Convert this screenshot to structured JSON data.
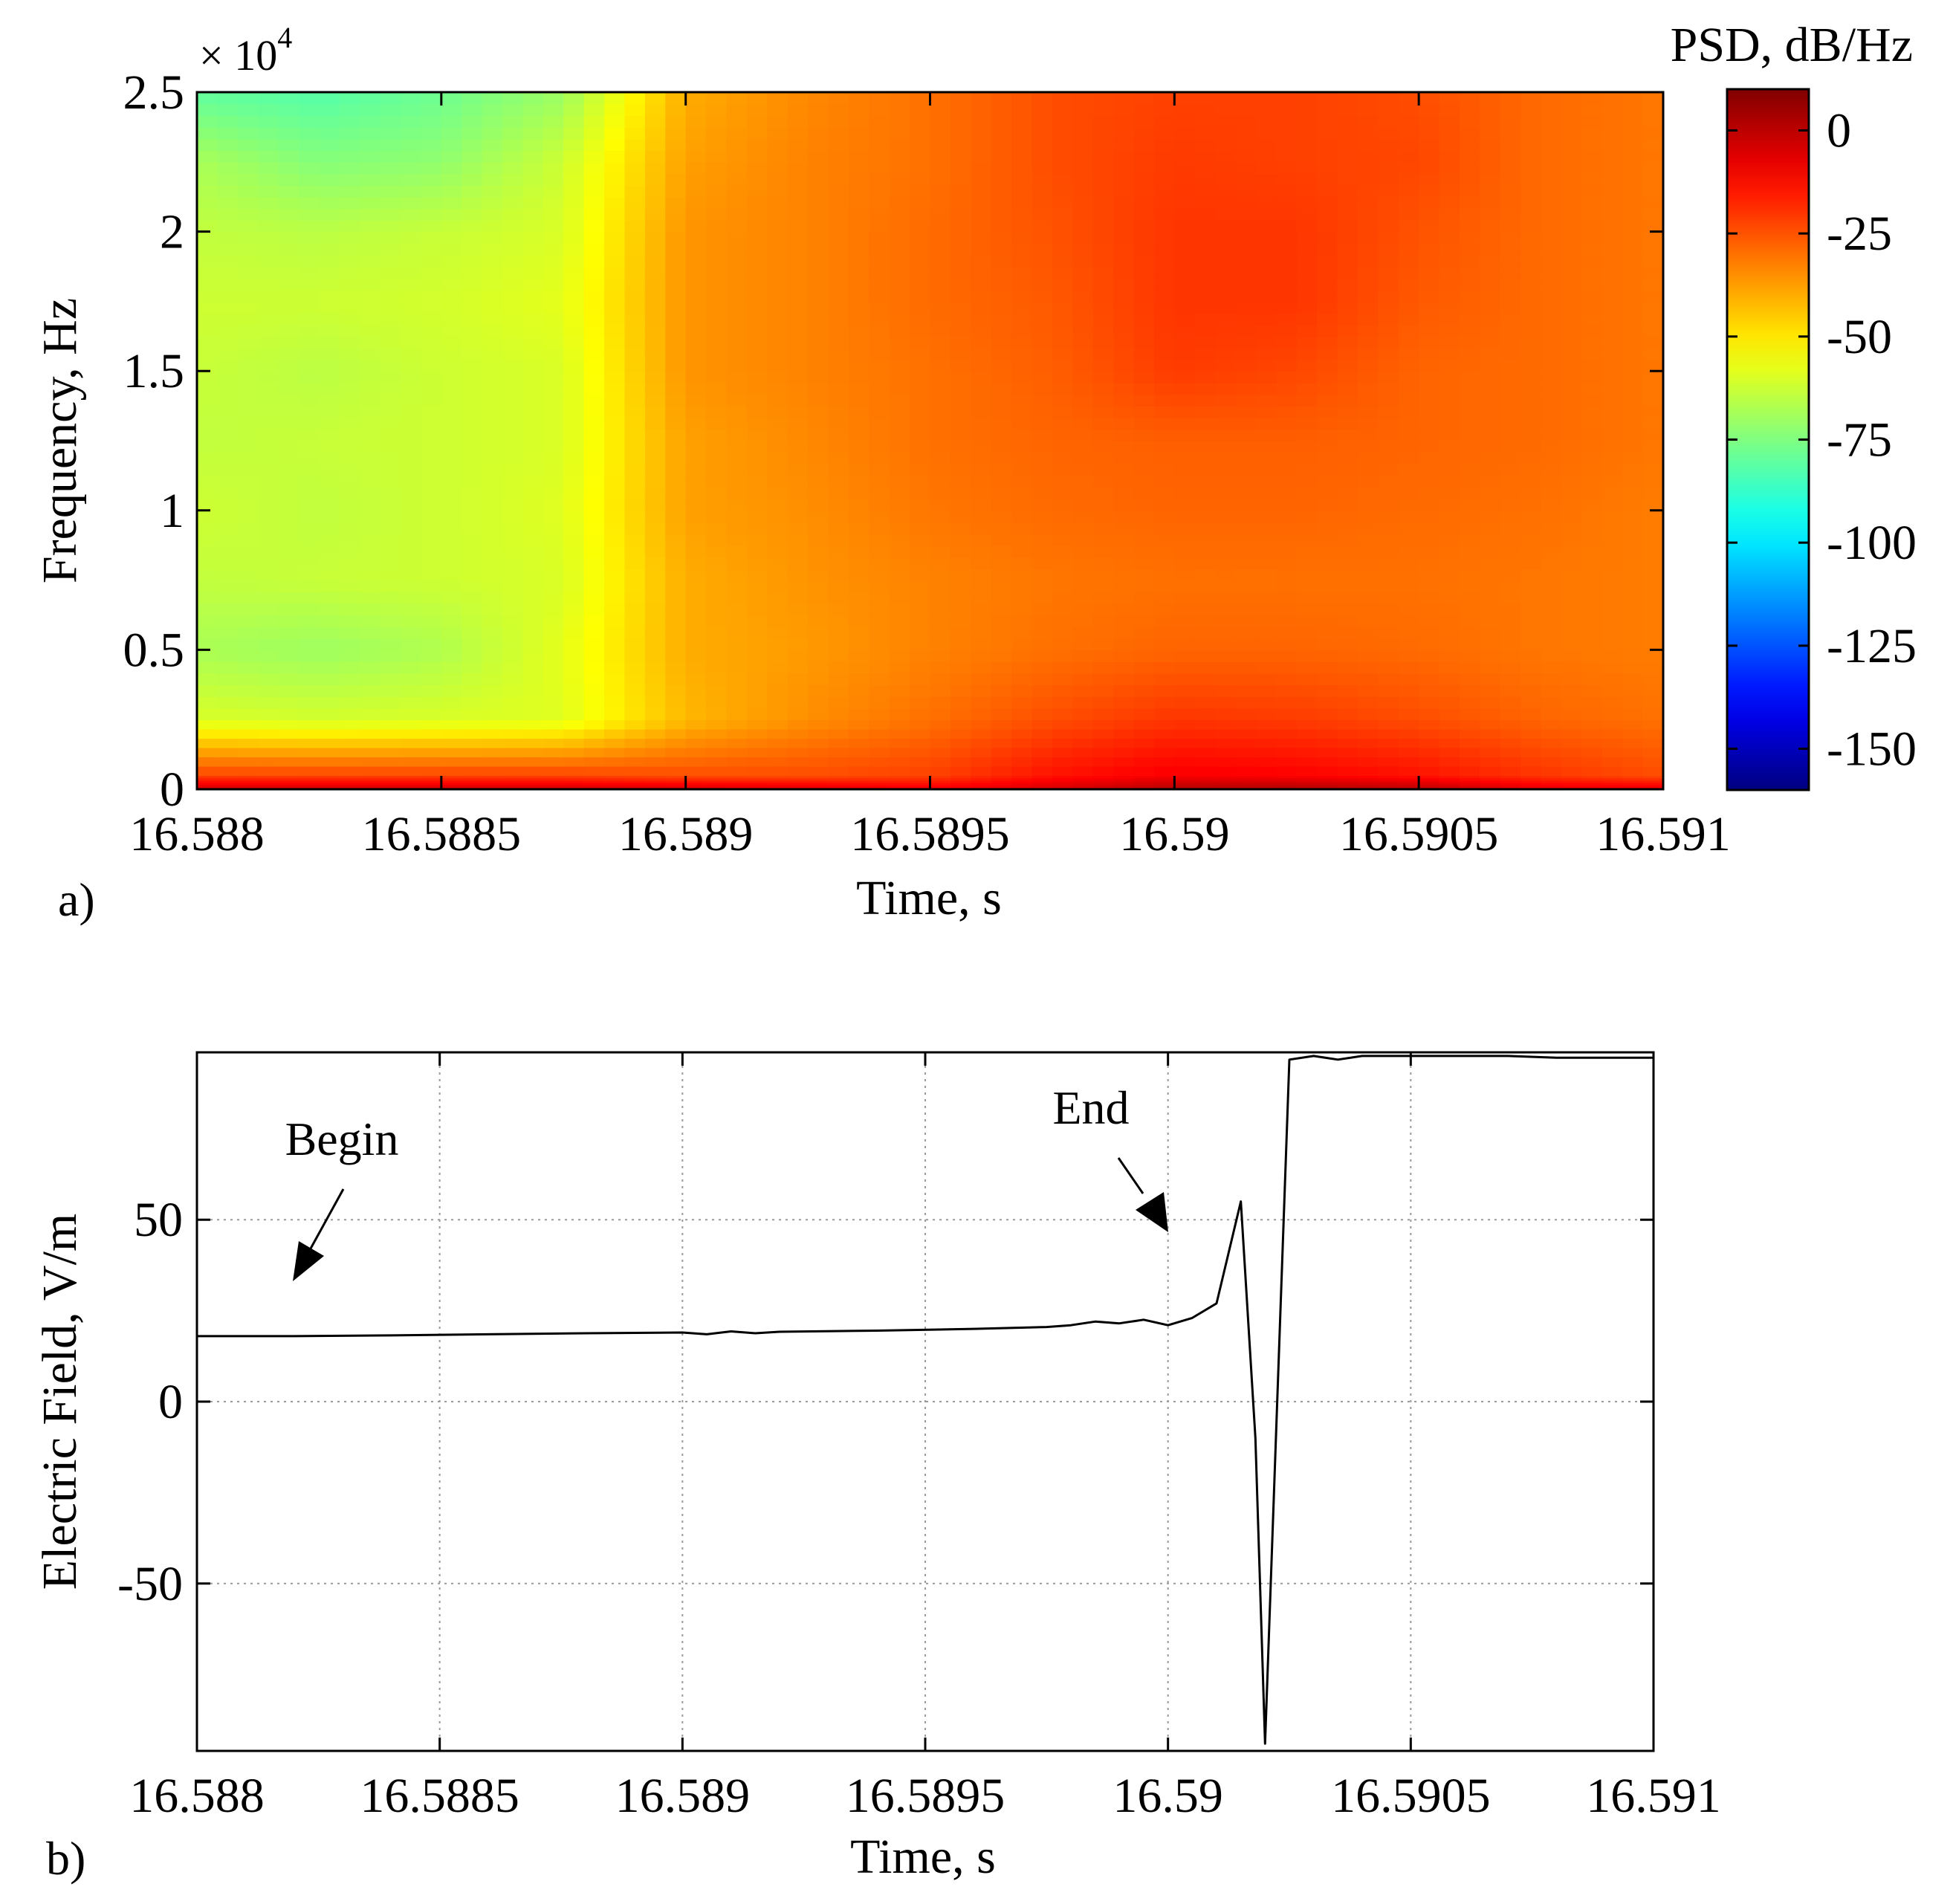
{
  "chart_data": [
    {
      "panel_label": "a)",
      "type": "heatmap",
      "x_label": "Time, s",
      "y_label": "Frequency, Hz",
      "x_ticks": [
        "16.588",
        "16.5885",
        "16.589",
        "16.5895",
        "16.59",
        "16.5905",
        "16.591"
      ],
      "x_tick_values": [
        16.588,
        16.5885,
        16.589,
        16.5895,
        16.59,
        16.5905,
        16.591
      ],
      "y_ticks": [
        "0",
        "0.5",
        "1",
        "1.5",
        "2",
        "2.5"
      ],
      "y_tick_values": [
        0,
        5000,
        10000,
        15000,
        20000,
        25000
      ],
      "y_multiplier_base": "× 10",
      "y_multiplier_exp": "4",
      "xlim": [
        16.588,
        16.591
      ],
      "ylim": [
        0,
        25000
      ],
      "colorbar": {
        "title": "PSD, dB/Hz",
        "ticks": [
          "0",
          "-25",
          "-50",
          "-75",
          "-100",
          "-125",
          "-150"
        ],
        "tick_values": [
          0,
          -25,
          -50,
          -75,
          -100,
          -125,
          -150
        ],
        "range": [
          -160,
          10
        ],
        "colormap": "jet"
      },
      "psd_time_s": [
        16.588,
        16.58825,
        16.5885,
        16.58875,
        16.589,
        16.58925,
        16.5895,
        16.58975,
        16.59,
        16.59025,
        16.5905,
        16.59075,
        16.591
      ],
      "psd_freq_hz": [
        0,
        500,
        2500,
        5000,
        7500,
        10000,
        12500,
        15000,
        17500,
        20000,
        22500,
        25000
      ],
      "psd_db_per_hz": [
        [
          -2,
          -2,
          -2,
          -2,
          -3,
          -4,
          -8,
          -4,
          2,
          3,
          1,
          -6,
          -6
        ],
        [
          -22,
          -22,
          -22,
          -22,
          -24,
          -24,
          -22,
          -14,
          -10,
          -11,
          -14,
          -20,
          -24
        ],
        [
          -60,
          -61,
          -60,
          -59,
          -42,
          -35,
          -30,
          -24,
          -20,
          -21,
          -24,
          -28,
          -30
        ],
        [
          -68,
          -70,
          -67,
          -58,
          -40,
          -37,
          -33,
          -30,
          -28,
          -28,
          -29,
          -31,
          -32
        ],
        [
          -64,
          -63,
          -62,
          -60,
          -40,
          -36,
          -33,
          -31,
          -30,
          -30,
          -30,
          -31,
          -32
        ],
        [
          -62,
          -64,
          -62,
          -59,
          -38,
          -35,
          -31,
          -29,
          -28,
          -28,
          -29,
          -30,
          -32
        ],
        [
          -64,
          -63,
          -62,
          -60,
          -38,
          -34,
          -30,
          -28,
          -27,
          -27,
          -28,
          -29,
          -31
        ],
        [
          -63,
          -65,
          -62,
          -60,
          -36,
          -33,
          -30,
          -27,
          -21,
          -23,
          -28,
          -29,
          -31
        ],
        [
          -62,
          -62,
          -61,
          -58,
          -36,
          -33,
          -29,
          -26,
          -20,
          -20,
          -26,
          -29,
          -31
        ],
        [
          -64,
          -65,
          -63,
          -60,
          -36,
          -33,
          -29,
          -25,
          -20,
          -20,
          -25,
          -29,
          -31
        ],
        [
          -68,
          -74,
          -72,
          -62,
          -38,
          -33,
          -30,
          -24,
          -21,
          -22,
          -23,
          -29,
          -31
        ],
        [
          -80,
          -82,
          -78,
          -70,
          -40,
          -34,
          -30,
          -24,
          -22,
          -22,
          -24,
          -29,
          -31
        ]
      ]
    },
    {
      "panel_label": "b)",
      "type": "line",
      "x_label": "Time, s",
      "y_label": "Electric Field, V/m",
      "x_ticks": [
        "16.588",
        "16.5885",
        "16.589",
        "16.5895",
        "16.59",
        "16.5905",
        "16.591"
      ],
      "x_tick_values": [
        16.588,
        16.5885,
        16.589,
        16.5895,
        16.59,
        16.5905,
        16.591
      ],
      "y_ticks": [
        "50",
        "0",
        "-50"
      ],
      "y_tick_values": [
        50,
        0,
        -50
      ],
      "xlim": [
        16.588,
        16.591
      ],
      "ylim": [
        -96,
        96
      ],
      "grid": true,
      "series": [
        {
          "x": [
            16.588,
            16.5882,
            16.5884,
            16.5886,
            16.5888,
            16.589,
            16.58905,
            16.5891,
            16.58915,
            16.5892,
            16.5894,
            16.5896,
            16.58975,
            16.5898,
            16.58985,
            16.5899,
            16.58995,
            16.59,
            16.59005,
            16.5901,
            16.59015,
            16.59018,
            16.5902,
            16.59025,
            16.5903,
            16.59035,
            16.5904,
            16.5905,
            16.5906,
            16.5907,
            16.5908,
            16.591
          ],
          "y": [
            18,
            18,
            18.2,
            18.5,
            18.8,
            19,
            18.5,
            19.3,
            18.8,
            19.2,
            19.5,
            20,
            20.5,
            21,
            22,
            21.5,
            22.5,
            21,
            23,
            27,
            55,
            -10,
            -94,
            94,
            95,
            94,
            95,
            95,
            95,
            95,
            94.5,
            94.5
          ]
        }
      ],
      "annotations": [
        {
          "text": "Begin",
          "x": 16.5882,
          "y": 26
        },
        {
          "text": "End",
          "x": 16.59,
          "y": 35
        }
      ]
    }
  ]
}
